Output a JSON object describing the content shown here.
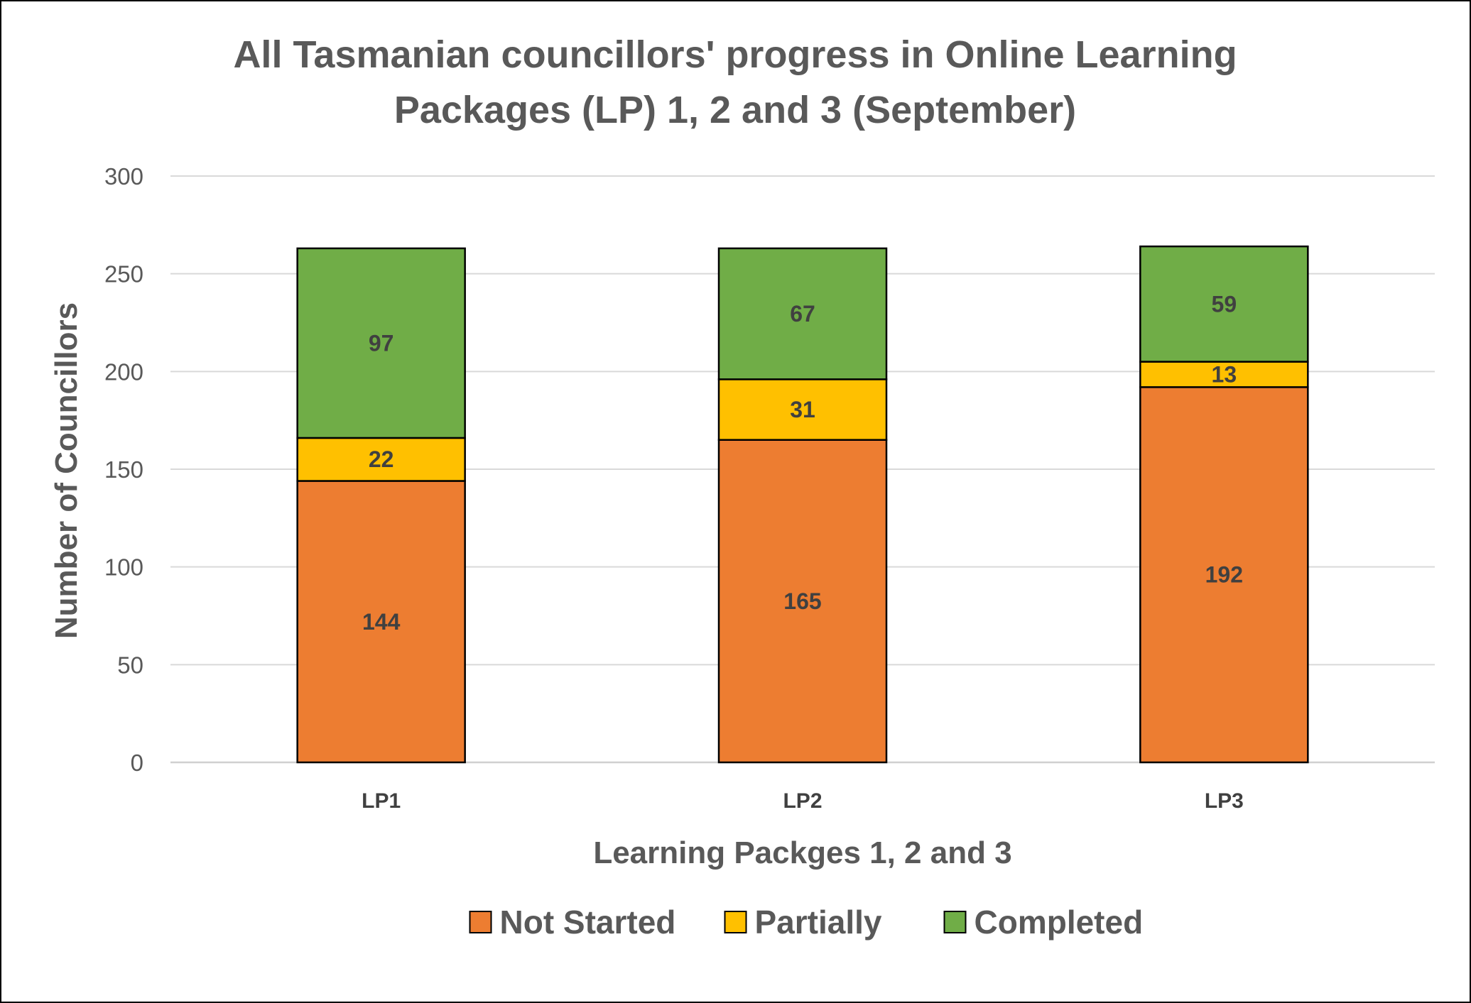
{
  "chart_data": {
    "type": "bar",
    "stacked": true,
    "title_lines": [
      "All Tasmanian councillors' progress in Online Learning",
      "Packages (LP) 1, 2 and 3 (September)"
    ],
    "xlabel": "Learning Packges 1, 2 and 3",
    "ylabel": "Number of Councillors",
    "categories": [
      "LP1",
      "LP2",
      "LP3"
    ],
    "ylim": [
      0,
      300
    ],
    "yticks": [
      0,
      50,
      100,
      150,
      200,
      250,
      300
    ],
    "grid": true,
    "legend_position": "bottom",
    "series": [
      {
        "name": "Not Started",
        "values": [
          144,
          165,
          192
        ],
        "color": "#ED7D31"
      },
      {
        "name": "Partially",
        "values": [
          22,
          31,
          13
        ],
        "color": "#FFC000"
      },
      {
        "name": "Completed",
        "values": [
          97,
          67,
          59
        ],
        "color": "#70AD47"
      }
    ]
  }
}
